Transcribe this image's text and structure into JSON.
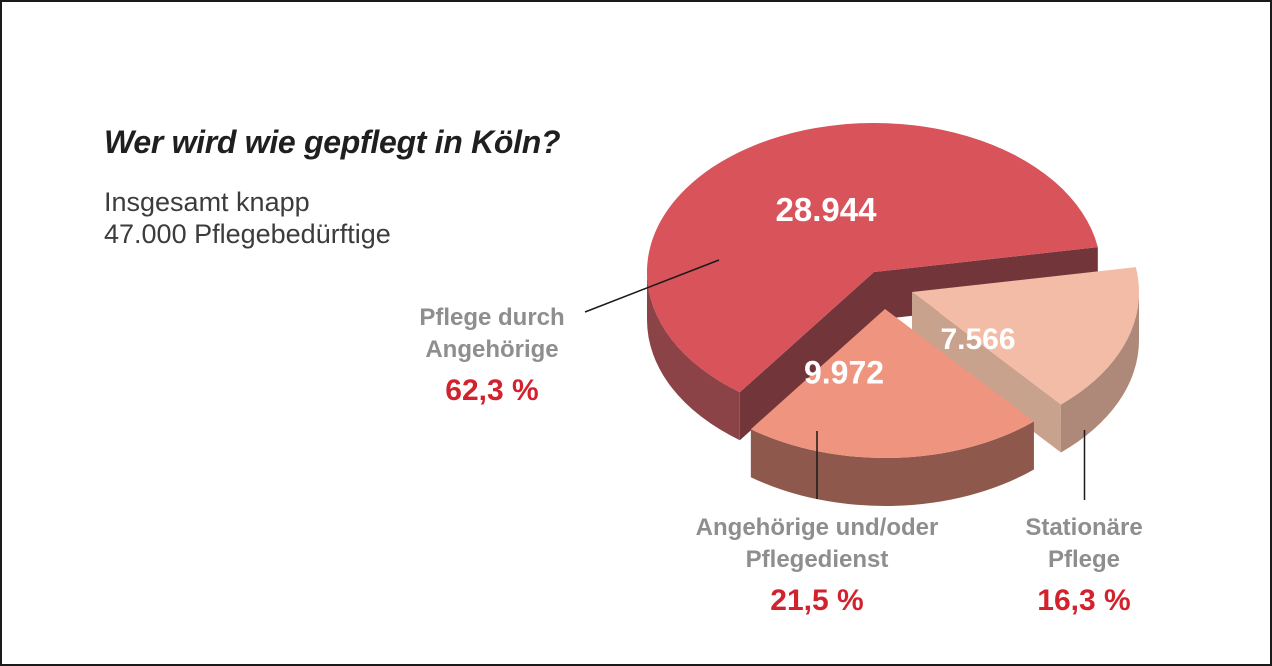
{
  "header": {
    "title": "Wer wird wie gepflegt in Köln?",
    "subtitle_line1": "Insgesamt knapp",
    "subtitle_line2": "47.000 Pflegebedürftige"
  },
  "chart_data": {
    "type": "pie",
    "style": "3d-exploded",
    "title": "Wer wird wie gepflegt in Köln?",
    "subtitle": "Insgesamt knapp 47.000 Pflegebedürftige",
    "legend_position": "callout-labels",
    "slices": [
      {
        "label": "Pflege durch Angehörige",
        "value": 28944,
        "value_display": "28.944",
        "percent": 62.3,
        "percent_display": "62,3 %",
        "color_top": "#d8535a",
        "color_rim": "#8c4348",
        "color_cut": "#72353a"
      },
      {
        "label": "Angehörige und/oder Pflegedienst",
        "value": 9972,
        "value_display": "9.972",
        "percent": 21.5,
        "percent_display": "21,5 %",
        "color_top": "#ee947f",
        "color_rim": "#8e594c",
        "color_cut": "#c97f6d"
      },
      {
        "label": "Stationäre Pflege",
        "value": 7566,
        "value_display": "7.566",
        "percent": 16.3,
        "percent_display": "16,3 %",
        "color_top": "#f2bca6",
        "color_rim": "#ae8878",
        "color_cut": "#c9a28e"
      }
    ]
  },
  "callouts": {
    "slice0": {
      "line1": "Pflege durch",
      "line2": "Angehörige",
      "percent": "62,3 %"
    },
    "slice1": {
      "line1": "Angehörige und/oder",
      "line2": "Pflegedienst",
      "percent": "21,5 %"
    },
    "slice2": {
      "line1": "Stationäre",
      "line2": "Pflege",
      "percent": "16,3 %"
    }
  },
  "colors": {
    "accent_red": "#d2222e",
    "label_gray": "#8e8e8e",
    "text_dark": "#1f1f1f",
    "subtitle_gray": "#3c3c3c",
    "background": "#ffffff",
    "border": "#1a1a1a",
    "leader_line": "#1a1a1a"
  }
}
